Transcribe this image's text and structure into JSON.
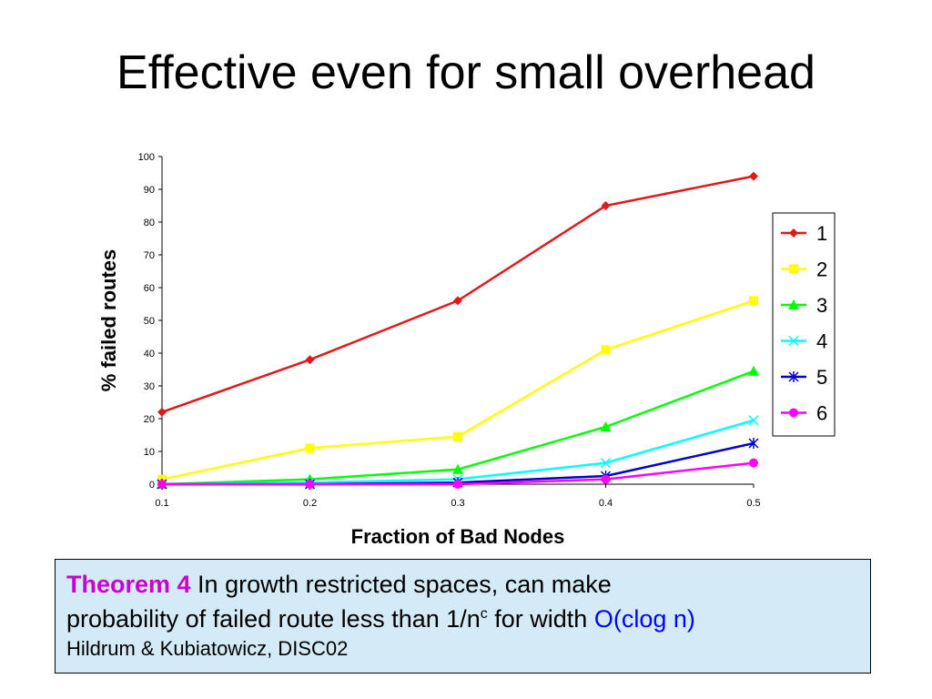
{
  "slide": {
    "title": "Effective even for small overhead"
  },
  "chart_data": {
    "type": "line",
    "xlabel": "Fraction of Bad Nodes",
    "ylabel": "% failed routes",
    "x": [
      0.1,
      0.2,
      0.3,
      0.4,
      0.5
    ],
    "x_tick_labels": [
      "0.1",
      "0.2",
      "0.3",
      "0.4",
      "0.5"
    ],
    "ylim": [
      0,
      100
    ],
    "y_ticks": [
      0,
      10,
      20,
      30,
      40,
      50,
      60,
      70,
      80,
      90,
      100
    ],
    "grid": false,
    "legend_position": "right",
    "series": [
      {
        "name": "1",
        "color": "#e01818",
        "marker": "diamond",
        "values": [
          22,
          38,
          56,
          85,
          94
        ]
      },
      {
        "name": "2",
        "color": "#ffff00",
        "marker": "square",
        "values": [
          1.5,
          11,
          14.5,
          41,
          56
        ]
      },
      {
        "name": "3",
        "color": "#00ff00",
        "marker": "triangle",
        "values": [
          0,
          1.5,
          4.5,
          17.5,
          34.5
        ]
      },
      {
        "name": "4",
        "color": "#00ffff",
        "marker": "x",
        "values": [
          0,
          0.5,
          1.5,
          6.5,
          19.5
        ]
      },
      {
        "name": "5",
        "color": "#0000cc",
        "marker": "star",
        "values": [
          0,
          0,
          0.5,
          2.5,
          12.5
        ]
      },
      {
        "name": "6",
        "color": "#ff00ff",
        "marker": "circle",
        "values": [
          0,
          0,
          0,
          1.5,
          6.5
        ]
      }
    ]
  },
  "theorem": {
    "label": "Theorem 4",
    "line1_rest": " In growth restricted spaces, can make",
    "line2_pre": "probability of failed route less than 1/n",
    "line2_sup": "c",
    "line2_mid": " for width ",
    "line2_blue": "O(clog n)",
    "citation": "Hildrum & Kubiatowicz, DISC02"
  }
}
